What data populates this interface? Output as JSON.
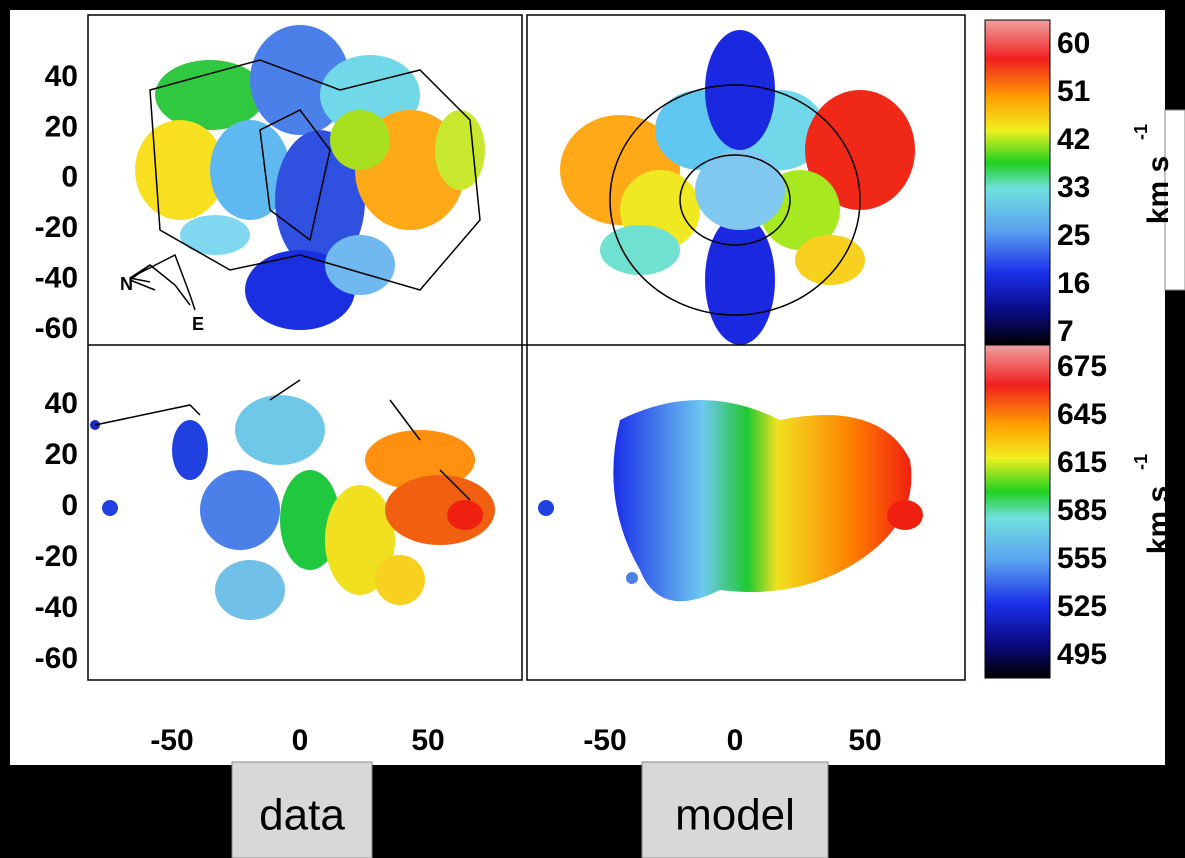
{
  "axes": {
    "y_ticks_top": [
      40,
      20,
      0,
      -20,
      -40,
      -60
    ],
    "y_ticks_bottom": [
      40,
      20,
      0,
      -20,
      -40,
      -60
    ],
    "x_ticks_left": [
      -50,
      0,
      50
    ],
    "x_ticks_right": [
      -50,
      0,
      50
    ]
  },
  "compass": {
    "north": "N",
    "east": "E"
  },
  "colorbars": [
    {
      "labels": [
        60,
        51,
        42,
        33,
        25,
        16,
        7
      ],
      "unit": "km s",
      "exponent": "-1"
    },
    {
      "labels": [
        675,
        645,
        615,
        585,
        555,
        525,
        495
      ],
      "unit": "km s",
      "exponent": "-1"
    }
  ],
  "captions": {
    "left": "data",
    "right": "model"
  }
}
